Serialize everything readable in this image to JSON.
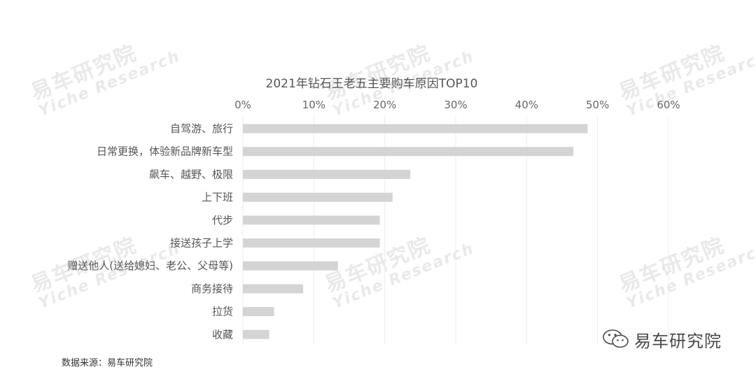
{
  "watermark": {
    "cn": "易车研究院",
    "en": "Yiche Research"
  },
  "badge": {
    "icon": "wechat-icon",
    "text": "易车研究院"
  },
  "source": "数据来源：易车研究院",
  "colors": {
    "bar": "#d4d4d4",
    "grid": "#ececec",
    "text": "#555555",
    "title": "#555555"
  },
  "chart_data": {
    "type": "bar",
    "orientation": "horizontal",
    "title": "2021年钻石王老五主要购车原因TOP10",
    "x_axis_position": "top",
    "xlim": [
      0,
      60
    ],
    "xticks": [
      "0%",
      "10%",
      "20%",
      "30%",
      "40%",
      "50%",
      "60%"
    ],
    "grid": true,
    "categories": [
      "自驾游、旅行",
      "日常更换，体验新品牌新车型",
      "飙车、越野、极限",
      "上下班",
      "代步",
      "接送孩子上学",
      "赠送他人(送给媳妇、老公、父母等)",
      "商务接待",
      "拉货",
      "收藏"
    ],
    "values": [
      48.6,
      46.6,
      23.6,
      21.1,
      19.3,
      19.3,
      13.4,
      8.5,
      4.4,
      3.7
    ]
  }
}
